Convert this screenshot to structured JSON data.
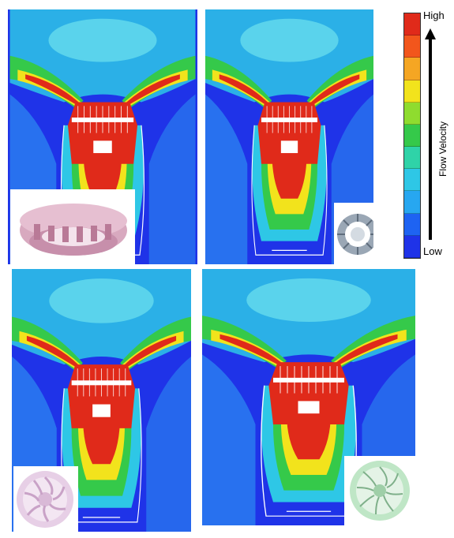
{
  "legend": {
    "high_label": "High",
    "low_label": "Low",
    "axis_label": "Flow Velocity",
    "colors": [
      "#e02a1a",
      "#f2561c",
      "#f5a623",
      "#f2e31c",
      "#8fdc2f",
      "#35c94a",
      "#2fd3a8",
      "#2ec7e6",
      "#27a7f0",
      "#1e63f2",
      "#1f33e8"
    ]
  },
  "panels": [
    {
      "id": "top-left",
      "impeller": "backward-curved-impeller-icon"
    },
    {
      "id": "top-right",
      "impeller": "radial-blade-impeller-icon"
    },
    {
      "id": "bottom-left",
      "impeller": "forward-curved-impeller-icon"
    },
    {
      "id": "bottom-right",
      "impeller": "mixed-flow-impeller-icon"
    }
  ]
}
